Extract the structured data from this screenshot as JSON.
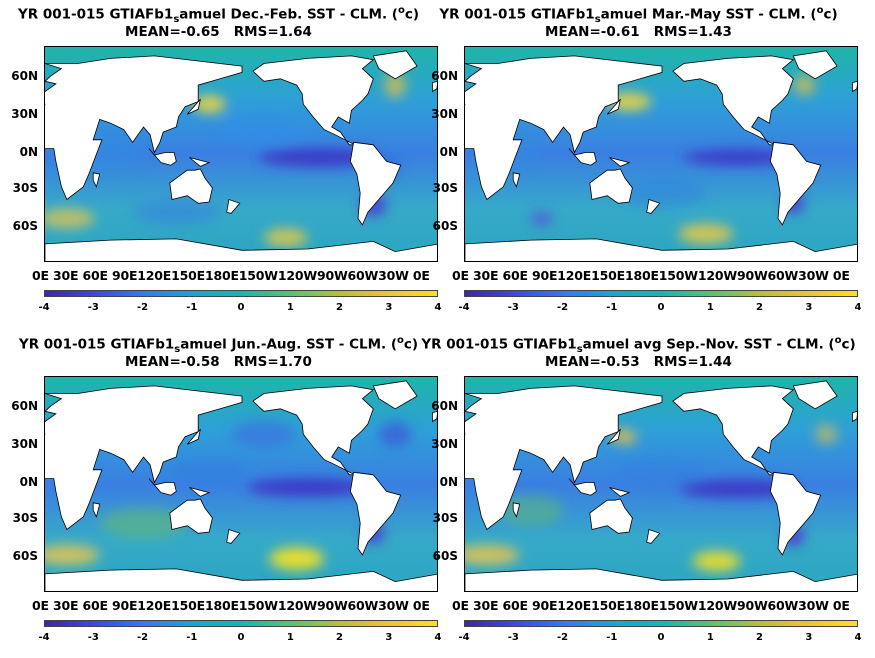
{
  "colors": {
    "ocean_base": "#2fb09a",
    "land": "#ffffff",
    "cold": "#3e26a8",
    "warm": "#f9e21c"
  },
  "panels": [
    {
      "title_main": "YR 001-015 GTIAFb1",
      "title_sub": "s",
      "title_rest": "amuel  Dec.-Feb. SST - CLM. (",
      "title_sup": "o",
      "title_end": "c)",
      "stats": "MEAN=-0.65   RMS=1.64"
    },
    {
      "title_main": "YR 001-015 GTIAFb1",
      "title_sub": "s",
      "title_rest": "amuel Mar.-May SST - CLM. (",
      "title_sup": "o",
      "title_end": "c)",
      "stats": "MEAN=-0.61   RMS=1.43"
    },
    {
      "title_main": "YR 001-015 GTIAFb1",
      "title_sub": "s",
      "title_rest": "amuel Jun.-Aug. SST - CLM. (",
      "title_sup": "o",
      "title_end": "c)",
      "stats": "MEAN=-0.58   RMS=1.70"
    },
    {
      "title_main": "YR 001-015 GTIAFb1",
      "title_sub": "s",
      "title_rest": "amuel avg Sep.-Nov. SST - CLM. (",
      "title_sup": "o",
      "title_end": "c)",
      "stats": "MEAN=-0.53   RMS=1.44"
    }
  ],
  "lat_labels": [
    "60N",
    "30N",
    "0N",
    "30S",
    "60S"
  ],
  "lon_labels_text": "0E  30E 60E 90E120E150E180E150W120W90W60W30W  0E",
  "colorbar_ticks": [
    "-4",
    "-3",
    "-2",
    "-1",
    "0",
    "1",
    "2",
    "3",
    "4"
  ]
}
